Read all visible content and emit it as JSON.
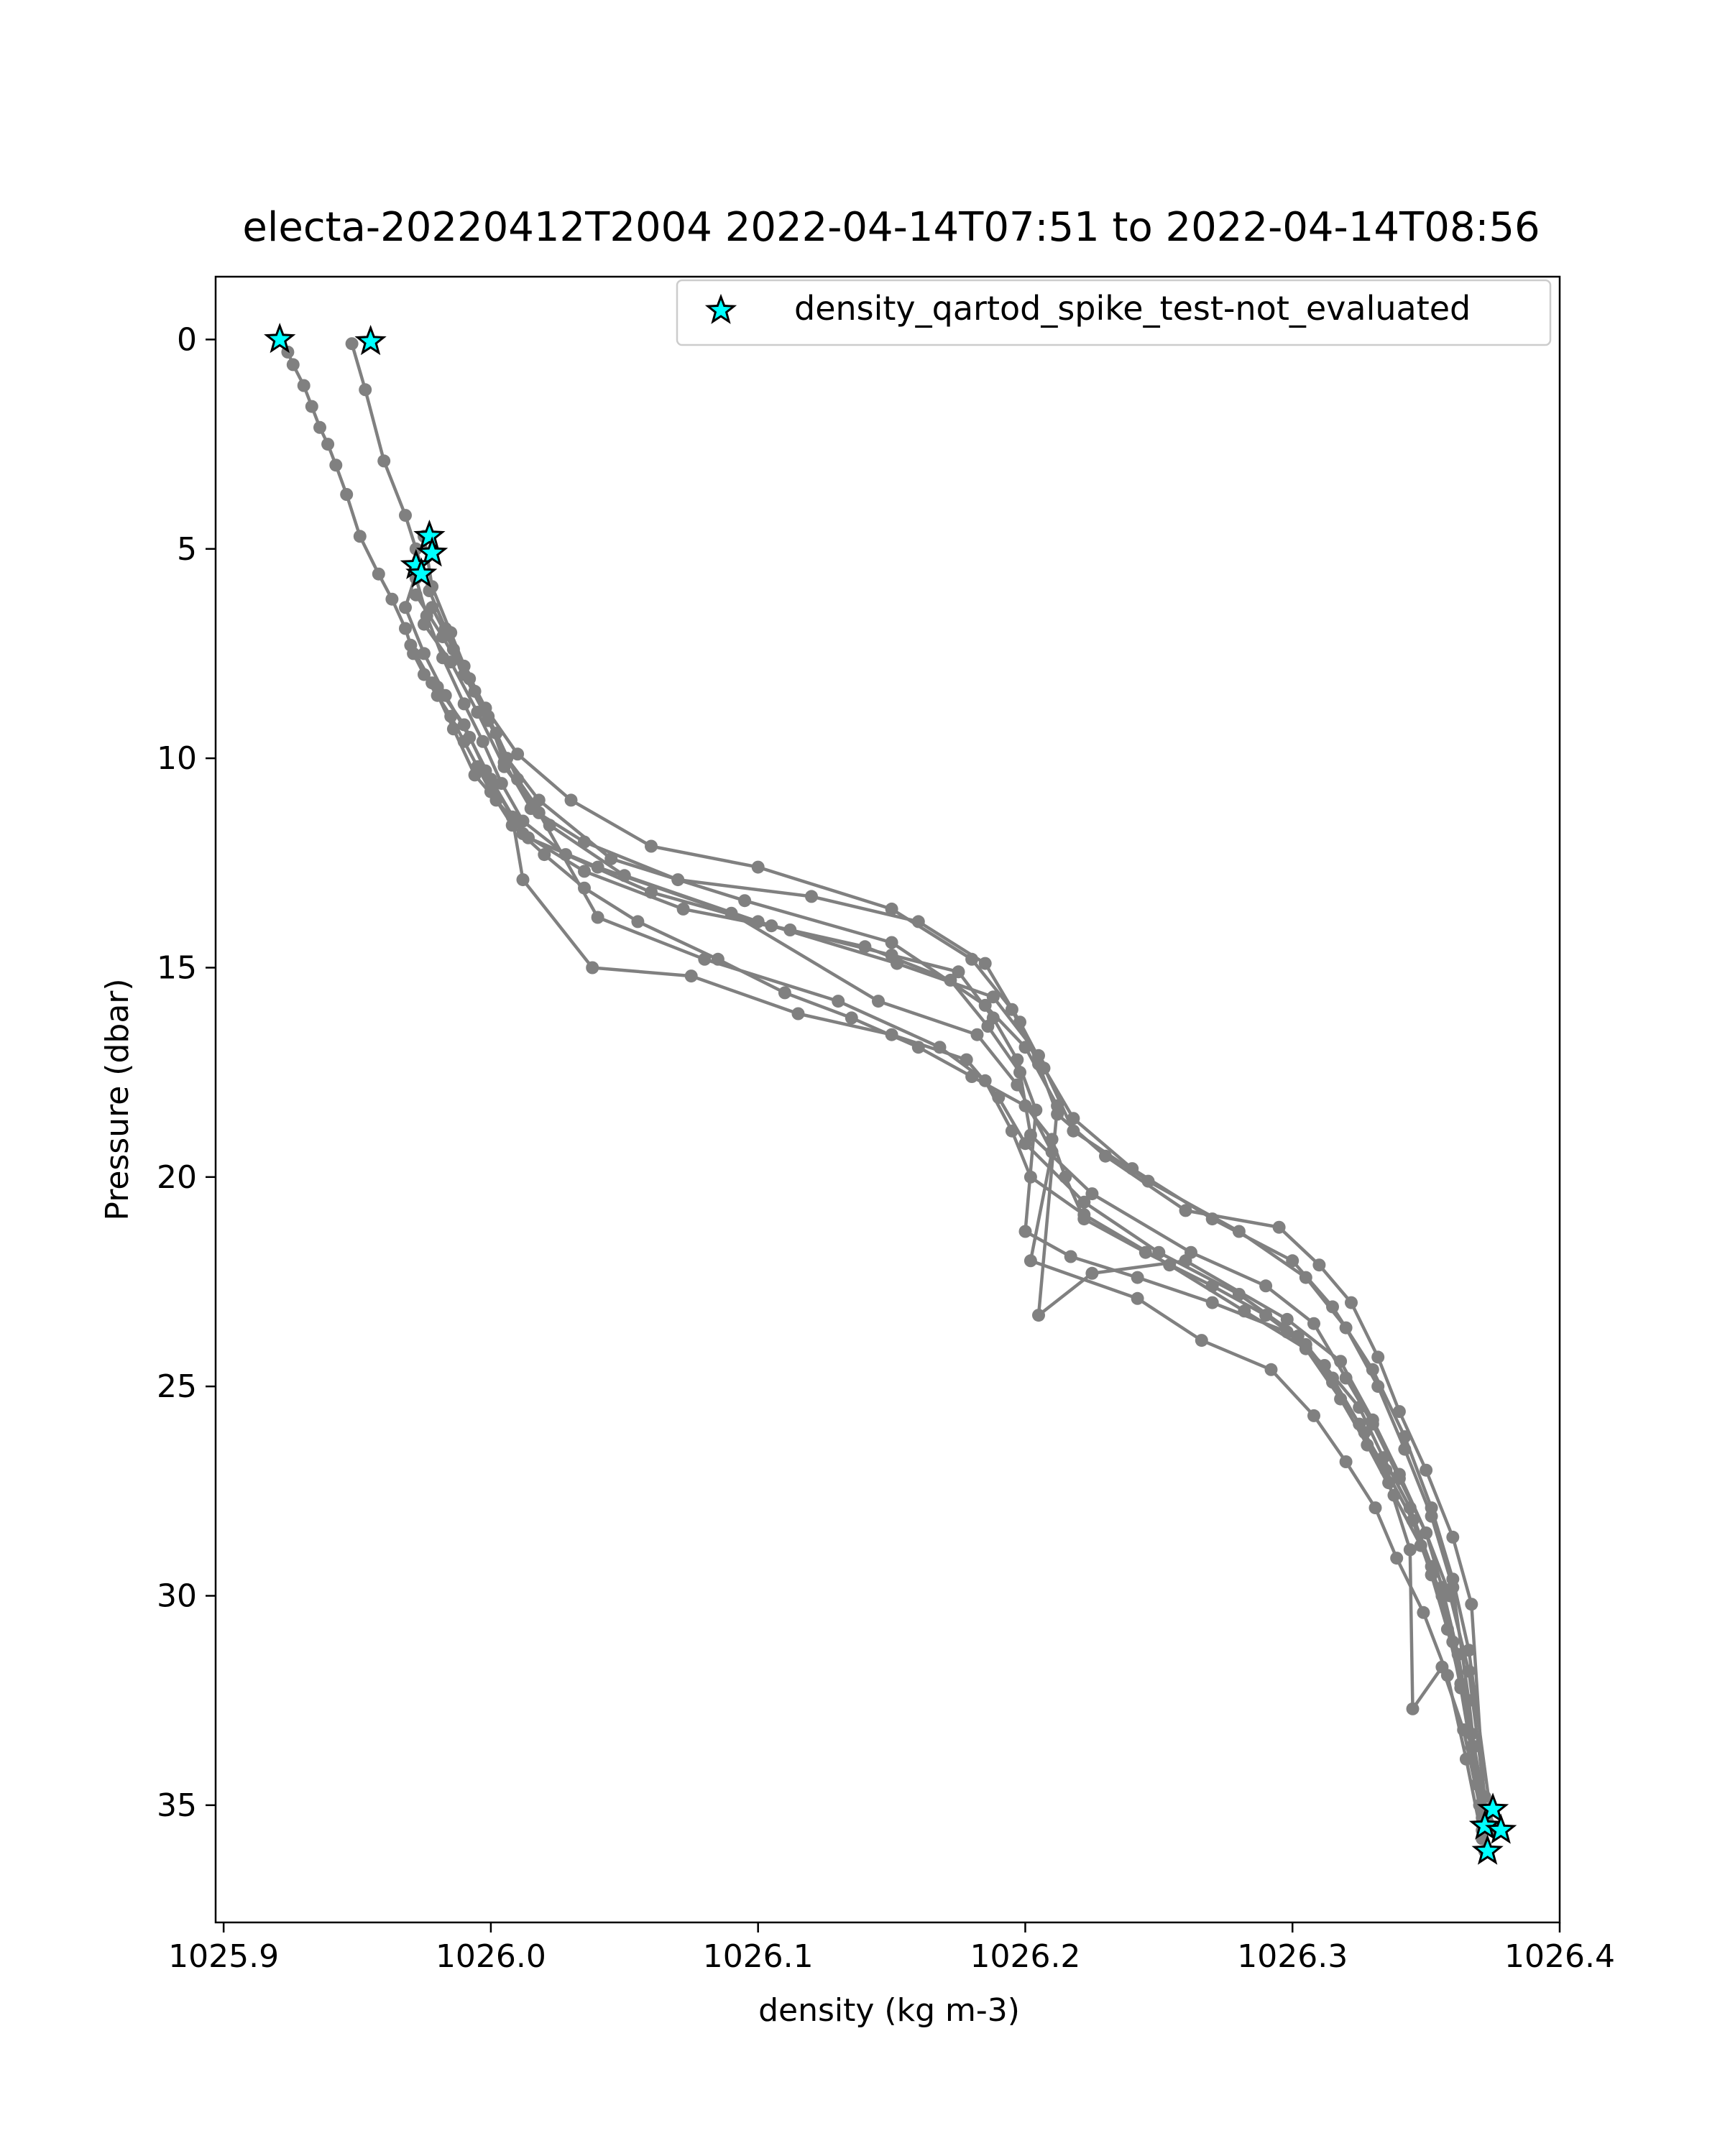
{
  "chart_data": {
    "type": "line",
    "title": "electa-20220412T2004 2022-04-14T07:51 to 2022-04-14T08:56",
    "xlabel": "density (kg m-3)",
    "ylabel": "Pressure (dbar)",
    "xlim": [
      1025.897,
      1026.4
    ],
    "ylim": [
      37.8,
      -1.5
    ],
    "y_inverted": true,
    "x_ticks": [
      1025.9,
      1026.0,
      1026.1,
      1026.2,
      1026.3,
      1026.4
    ],
    "x_tick_labels": [
      "1025.9",
      "1026.0",
      "1026.1",
      "1026.2",
      "1026.3",
      "1026.4"
    ],
    "y_ticks": [
      0,
      5,
      10,
      15,
      20,
      25,
      30,
      35
    ],
    "y_tick_labels": [
      "0",
      "5",
      "10",
      "15",
      "20",
      "25",
      "30",
      "35"
    ],
    "grid": false,
    "legend_position": "top-right",
    "legend": [
      {
        "label": "density_qartod_spike_test-not_evaluated",
        "marker": "star",
        "color": "#00ffff"
      }
    ],
    "line_color": "#808080",
    "series": [
      {
        "x": [
          1025.921,
          1025.924,
          1025.926,
          1025.93,
          1025.933,
          1025.936,
          1025.939,
          1025.942,
          1025.946,
          1025.951,
          1025.958,
          1025.963,
          1025.968,
          1025.971,
          1025.975,
          1025.98,
          1025.985,
          1025.99,
          1025.995,
          1026.0,
          1026.008,
          1026.02,
          1026.035,
          1026.055,
          1026.085,
          1026.11,
          1026.135,
          1026.16,
          1026.18,
          1026.2,
          1026.21,
          1026.215,
          1026.222,
          1026.245,
          1026.27,
          1026.29,
          1026.305,
          1026.315,
          1026.325,
          1026.335,
          1026.345,
          1026.352,
          1026.358,
          1026.363,
          1026.367,
          1026.371
        ],
        "y": [
          0,
          0.3,
          0.6,
          1.1,
          1.6,
          2.1,
          2.5,
          3.0,
          3.7,
          4.7,
          5.6,
          6.2,
          6.9,
          7.5,
          8.0,
          8.5,
          9.0,
          9.6,
          10.2,
          10.8,
          11.6,
          12.3,
          13.1,
          13.9,
          14.8,
          15.6,
          16.2,
          16.9,
          17.6,
          18.3,
          19.1,
          20.0,
          21.0,
          21.8,
          22.6,
          23.3,
          24.0,
          24.8,
          25.9,
          27.0,
          28.2,
          29.5,
          30.8,
          32.1,
          33.6,
          35.6
        ]
      },
      {
        "x": [
          1025.948,
          1025.953,
          1025.96,
          1025.968,
          1025.972,
          1025.977,
          1025.983,
          1025.99,
          1025.998,
          1026.01,
          1026.03,
          1026.06,
          1026.1,
          1026.15,
          1026.18,
          1026.195,
          1026.205,
          1026.212,
          1026.23,
          1026.26,
          1026.295,
          1026.31,
          1026.322,
          1026.332,
          1026.34,
          1026.35,
          1026.36,
          1026.367,
          1026.372
        ],
        "y": [
          0.1,
          1.2,
          2.9,
          4.2,
          5.0,
          6.0,
          6.9,
          7.8,
          8.8,
          9.9,
          11.0,
          12.1,
          12.6,
          13.6,
          14.8,
          16.0,
          17.3,
          18.5,
          19.5,
          20.8,
          21.2,
          22.1,
          23.0,
          24.3,
          25.6,
          27.0,
          28.6,
          30.2,
          35.1
        ]
      },
      {
        "x": [
          1025.975,
          1025.978,
          1025.985,
          1025.992,
          1025.999,
          1026.005,
          1026.015,
          1026.035,
          1026.07,
          1026.12,
          1026.16,
          1026.185,
          1026.198,
          1026.207,
          1026.218,
          1026.24,
          1026.27,
          1026.3,
          1026.315,
          1026.33,
          1026.342,
          1026.352,
          1026.36,
          1026.366,
          1026.375
        ],
        "y": [
          4.7,
          5.9,
          7.0,
          8.1,
          9.0,
          10.1,
          11.2,
          12.0,
          12.9,
          13.3,
          13.9,
          14.9,
          16.3,
          17.4,
          18.6,
          19.8,
          21.0,
          22.0,
          23.1,
          24.6,
          26.2,
          27.9,
          29.6,
          31.3,
          35.6
        ]
      },
      {
        "x": [
          1025.973,
          1025.968,
          1025.975,
          1025.983,
          1025.992,
          1026.0,
          1026.012,
          1026.035,
          1026.072,
          1026.112,
          1026.15,
          1026.175,
          1026.188,
          1026.197,
          1026.204,
          1026.2,
          1026.217,
          1026.242,
          1026.27,
          1026.298,
          1026.312,
          1026.325,
          1026.334,
          1026.344,
          1026.352,
          1026.36,
          1026.367,
          1026.372
        ],
        "y": [
          5.4,
          6.4,
          7.5,
          8.5,
          9.5,
          10.5,
          11.8,
          12.7,
          13.6,
          14.1,
          14.7,
          15.1,
          16.2,
          17.2,
          18.4,
          21.3,
          21.9,
          22.4,
          23.0,
          23.7,
          24.5,
          25.5,
          26.7,
          27.9,
          29.3,
          31.1,
          33.3,
          36.1
        ]
      },
      {
        "x": [
          1025.972,
          1025.976,
          1025.982,
          1025.99,
          1025.997,
          1026.004,
          1026.012,
          1026.028,
          1026.06,
          1026.105,
          1026.14,
          1026.172,
          1026.186,
          1026.198,
          1026.202,
          1026.225,
          1026.262,
          1026.29,
          1026.308,
          1026.32,
          1026.33,
          1026.34,
          1026.35,
          1026.356,
          1026.362,
          1026.368,
          1026.373
        ],
        "y": [
          5.7,
          6.6,
          7.6,
          8.7,
          9.6,
          10.6,
          11.5,
          12.3,
          13.2,
          14.0,
          14.5,
          15.3,
          16.4,
          17.5,
          19.0,
          20.4,
          21.8,
          22.6,
          23.5,
          24.8,
          25.9,
          27.2,
          28.5,
          29.8,
          31.4,
          33.6,
          35.4
        ]
      },
      {
        "x": [
          1025.975,
          1025.985,
          1025.995,
          1026.005,
          1026.018,
          1026.04,
          1026.08,
          1026.13,
          1026.168,
          1026.185,
          1026.195,
          1026.202,
          1026.222,
          1026.254,
          1026.282,
          1026.305,
          1026.318,
          1026.328,
          1026.338,
          1026.348,
          1026.356,
          1026.363,
          1026.369
        ],
        "y": [
          6.8,
          7.7,
          8.9,
          10.2,
          11.3,
          13.8,
          14.8,
          15.8,
          16.9,
          17.7,
          18.9,
          20.0,
          20.9,
          22.1,
          23.2,
          24.1,
          25.3,
          26.4,
          27.6,
          28.8,
          30.0,
          32.2,
          34.5
        ]
      },
      {
        "x": [
          1025.98,
          1025.99,
          1025.998,
          1026.008,
          1026.012,
          1026.038,
          1026.075,
          1026.115,
          1026.15,
          1026.178,
          1026.19,
          1026.2,
          1026.222,
          1026.25,
          1026.28,
          1026.302,
          1026.315,
          1026.327,
          1026.336,
          1026.344,
          1026.345,
          1026.356,
          1026.364,
          1026.37
        ],
        "y": [
          8.3,
          9.2,
          10.3,
          11.4,
          12.9,
          15.0,
          15.2,
          16.1,
          16.6,
          17.2,
          18.1,
          19.2,
          20.6,
          21.8,
          22.8,
          23.8,
          24.9,
          26.1,
          27.3,
          28.9,
          32.7,
          31.7,
          33.2,
          35.0
        ]
      },
      {
        "x": [
          1025.97,
          1025.978,
          1025.986,
          1025.994,
          1026.002,
          1026.014,
          1026.04,
          1026.09,
          1026.145,
          1026.182,
          1026.197,
          1026.21,
          1026.202,
          1026.242,
          1026.266,
          1026.292,
          1026.308,
          1026.32,
          1026.331,
          1026.339,
          1026.349,
          1026.358,
          1026.365,
          1026.371
        ],
        "y": [
          7.3,
          8.2,
          9.3,
          10.4,
          11.0,
          11.9,
          12.6,
          13.7,
          15.8,
          16.6,
          17.8,
          19.4,
          22.0,
          22.9,
          23.9,
          24.6,
          25.7,
          26.8,
          27.9,
          29.1,
          30.4,
          31.9,
          33.9,
          35.8
        ]
      },
      {
        "x": [
          1025.972,
          1025.982,
          1025.99,
          1025.999,
          1026.006,
          1026.018,
          1026.045,
          1026.095,
          1026.15,
          1026.185,
          1026.2,
          1026.212,
          1026.205,
          1026.225,
          1026.26,
          1026.298,
          1026.318,
          1026.33,
          1026.34,
          1026.35,
          1026.359,
          1026.366,
          1026.372
        ],
        "y": [
          6.1,
          7.1,
          8.0,
          9.1,
          10.0,
          11.0,
          12.4,
          13.4,
          14.4,
          15.9,
          16.9,
          18.3,
          23.3,
          22.3,
          22.0,
          23.4,
          24.4,
          25.8,
          27.1,
          28.5,
          30.0,
          31.8,
          34.8
        ]
      },
      {
        "x": [
          1025.978,
          1025.986,
          1025.994,
          1026.002,
          1026.01,
          1026.022,
          1026.05,
          1026.1,
          1026.152,
          1026.188,
          1026.205,
          1026.218,
          1026.246,
          1026.28,
          1026.305,
          1026.32,
          1026.332,
          1026.342,
          1026.352,
          1026.36,
          1026.366,
          1026.371
        ],
        "y": [
          6.4,
          7.4,
          8.4,
          9.4,
          10.5,
          11.6,
          12.8,
          13.9,
          14.9,
          15.7,
          17.1,
          18.9,
          20.1,
          21.3,
          22.4,
          23.6,
          25.0,
          26.5,
          28.1,
          29.8,
          32.5,
          35.3
        ]
      }
    ],
    "flagged_points": [
      {
        "x": 1025.921,
        "y": 0
      },
      {
        "x": 1025.955,
        "y": 0.05
      },
      {
        "x": 1025.977,
        "y": 4.7
      },
      {
        "x": 1025.978,
        "y": 5.1
      },
      {
        "x": 1025.972,
        "y": 5.4
      },
      {
        "x": 1025.974,
        "y": 5.6
      },
      {
        "x": 1026.375,
        "y": 35.1
      },
      {
        "x": 1026.372,
        "y": 35.5
      },
      {
        "x": 1026.378,
        "y": 35.6
      },
      {
        "x": 1026.373,
        "y": 36.1
      }
    ]
  }
}
